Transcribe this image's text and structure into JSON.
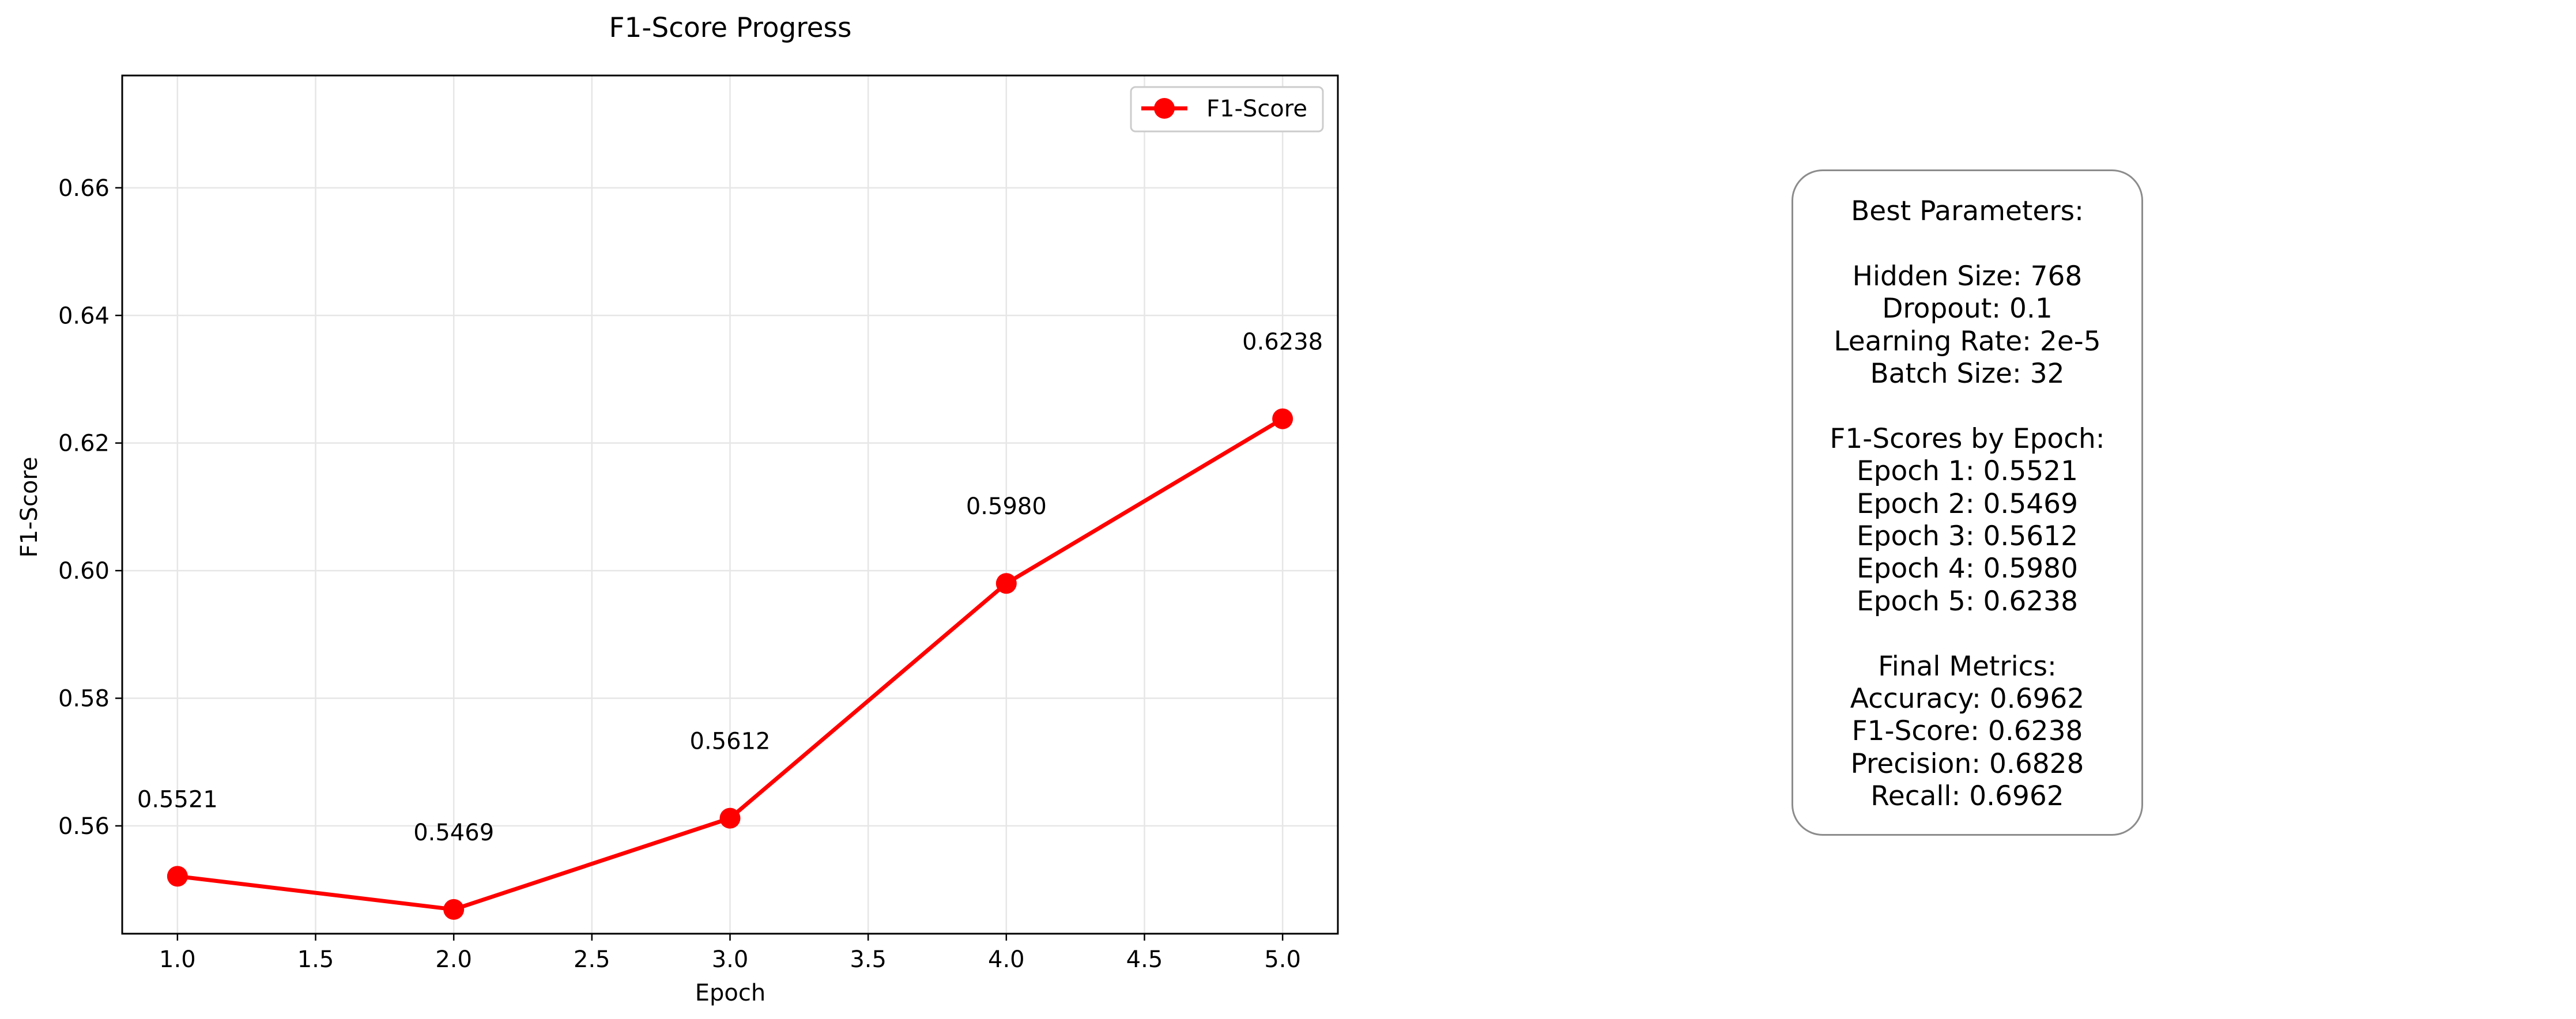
{
  "chart_data": {
    "type": "line",
    "title": "F1-Score Progress",
    "xlabel": "Epoch",
    "ylabel": "F1-Score",
    "x": [
      1,
      2,
      3,
      4,
      5
    ],
    "series": [
      {
        "name": "F1-Score",
        "values": [
          0.5521,
          0.5469,
          0.5612,
          0.598,
          0.6238
        ],
        "color": "#ff0000"
      }
    ],
    "data_labels": [
      "0.5521",
      "0.5469",
      "0.5612",
      "0.5980",
      "0.6238"
    ],
    "xlim": [
      0.8,
      5.2
    ],
    "ylim": [
      0.5431,
      0.6776
    ],
    "xticks": [
      "1.0",
      "1.5",
      "2.0",
      "2.5",
      "3.0",
      "3.5",
      "4.0",
      "4.5",
      "5.0"
    ],
    "yticks": [
      "0.56",
      "0.58",
      "0.60",
      "0.62",
      "0.64",
      "0.66"
    ],
    "grid": true,
    "legend": "top-right",
    "marker": "circle"
  },
  "summary": {
    "header": "Best Parameters:",
    "params": [
      "Hidden Size: 768",
      "Dropout: 0.1",
      "Learning Rate: 2e-5",
      "Batch Size: 32"
    ],
    "epochs_header": "F1-Scores by Epoch:",
    "epochs": [
      "Epoch 1: 0.5521",
      "Epoch 2: 0.5469",
      "Epoch 3: 0.5612",
      "Epoch 4: 0.5980",
      "Epoch 5: 0.6238"
    ],
    "metrics_header": "Final Metrics:",
    "metrics": [
      "Accuracy: 0.6962",
      "F1-Score: 0.6238",
      "Precision: 0.6828",
      "Recall: 0.6962"
    ]
  }
}
